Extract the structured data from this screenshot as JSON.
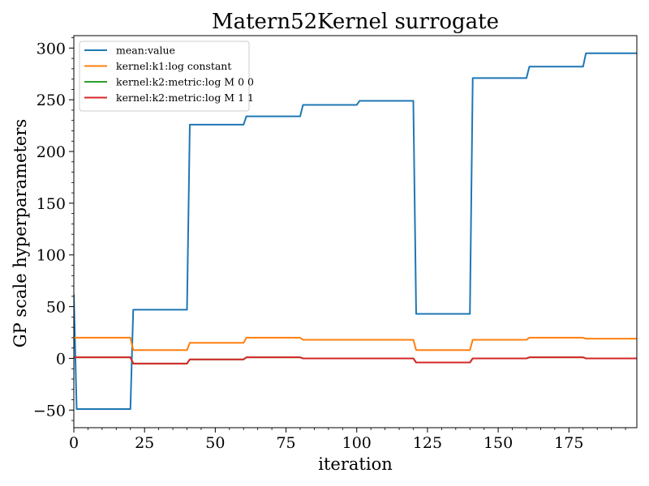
{
  "chart_data": {
    "type": "line",
    "title": "Matern52Kernel surrogate",
    "xlabel": "iteration",
    "ylabel": "GP scale hyperparameters",
    "xlim": [
      0,
      199
    ],
    "ylim": [
      -67,
      312
    ],
    "xticks": [
      0,
      25,
      50,
      75,
      100,
      125,
      150,
      175
    ],
    "xtick_labels": [
      "0",
      "25",
      "50",
      "75",
      "100",
      "125",
      "150",
      "175"
    ],
    "yticks": [
      -50,
      0,
      50,
      100,
      150,
      200,
      250,
      300
    ],
    "ytick_labels": [
      "−50",
      "0",
      "50",
      "100",
      "150",
      "200",
      "250",
      "300"
    ],
    "grid": false,
    "legend_position": "top-left",
    "series": [
      {
        "name": "mean:value",
        "color": "#1f77b4",
        "x": [
          0,
          1,
          20,
          21,
          40,
          41,
          60,
          61,
          80,
          81,
          100,
          101,
          120,
          121,
          140,
          141,
          160,
          161,
          180,
          181,
          199
        ],
        "y": [
          62,
          -49,
          -49,
          47,
          47,
          226,
          226,
          234,
          234,
          245,
          245,
          249,
          249,
          43,
          43,
          271,
          271,
          282,
          282,
          295,
          295
        ]
      },
      {
        "name": "kernel:k1:log constant",
        "color": "#ff7f0e",
        "x": [
          0,
          20,
          21,
          40,
          41,
          60,
          61,
          80,
          81,
          120,
          121,
          140,
          141,
          160,
          161,
          180,
          181,
          199
        ],
        "y": [
          20,
          20,
          8,
          8,
          15,
          15,
          20,
          20,
          18,
          18,
          8,
          8,
          18,
          18,
          20,
          20,
          19,
          19
        ]
      },
      {
        "name": "kernel:k2:metric:log M 0 0",
        "color": "#2ca02c",
        "x": [
          0,
          20,
          21,
          40,
          41,
          60,
          61,
          80,
          81,
          120,
          121,
          140,
          141,
          160,
          161,
          180,
          181,
          199
        ],
        "y": [
          1,
          1,
          -5,
          -5,
          -1,
          -1,
          1,
          1,
          0,
          0,
          -4,
          -4,
          0,
          0,
          1,
          1,
          0,
          0
        ]
      },
      {
        "name": "kernel:k2:metric:log M 1 1",
        "color": "#d62728",
        "x": [
          0,
          20,
          21,
          40,
          41,
          60,
          61,
          80,
          81,
          120,
          121,
          140,
          141,
          160,
          161,
          180,
          181,
          199
        ],
        "y": [
          1,
          1,
          -5,
          -5,
          -1,
          -1,
          1,
          1,
          0,
          0,
          -4,
          -4,
          0,
          0,
          1,
          1,
          0,
          0
        ]
      }
    ]
  }
}
